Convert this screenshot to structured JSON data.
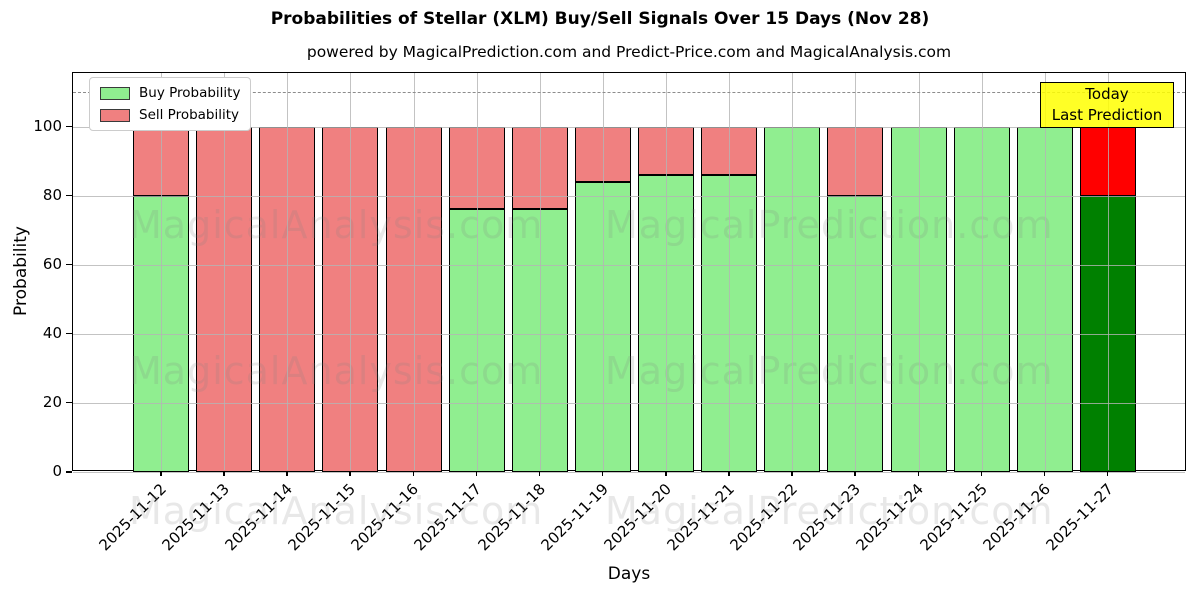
{
  "title": "Probabilities of Stellar (XLM) Buy/Sell Signals Over 15 Days (Nov 28)",
  "subtitle": "powered by MagicalPrediction.com and Predict-Price.com and MagicalAnalysis.com",
  "legend": {
    "buy_label": "Buy Probability",
    "sell_label": "Sell Probability"
  },
  "annotation": {
    "line1": "Today",
    "line2": "Last Prediction"
  },
  "watermarks": [
    "MagicalAnalysis.com",
    "MagicalPrediction.com"
  ],
  "axis": {
    "xlabel": "Days",
    "ylabel": "Probability"
  },
  "colors": {
    "buy": "#90ee90",
    "sell": "#f08080",
    "today_buy": "#008000",
    "today_sell": "#ff0000",
    "bar_edge": "#000000",
    "grid": "#b4b4b4",
    "dashed_line": "#8c8c8c",
    "annotation_bg": "rgba(255,255,0,0.85)",
    "annotation_border": "#000000"
  },
  "chart_data": {
    "type": "bar",
    "stacked": true,
    "title": "Probabilities of Stellar (XLM) Buy/Sell Signals Over 15 Days (Nov 28)",
    "xlabel": "Days",
    "ylabel": "Probability",
    "ylim": [
      0,
      115
    ],
    "yticks": [
      0,
      20,
      40,
      60,
      80,
      100
    ],
    "dashed_hline": 110,
    "grid": true,
    "legend_position": "upper left",
    "categories": [
      "2025-11-12",
      "2025-11-13",
      "2025-11-14",
      "2025-11-15",
      "2025-11-16",
      "2025-11-17",
      "2025-11-18",
      "2025-11-19",
      "2025-11-20",
      "2025-11-21",
      "2025-11-22",
      "2025-11-23",
      "2025-11-24",
      "2025-11-25",
      "2025-11-26",
      "2025-11-27"
    ],
    "series": [
      {
        "name": "Buy Probability",
        "values": [
          80,
          0,
          0,
          0,
          0,
          76,
          76,
          84,
          86,
          86,
          100,
          80,
          100,
          100,
          100,
          80
        ]
      },
      {
        "name": "Sell Probability",
        "values": [
          20,
          100,
          100,
          100,
          100,
          24,
          24,
          16,
          14,
          14,
          0,
          20,
          0,
          0,
          0,
          20
        ]
      }
    ],
    "today_index": 15
  }
}
